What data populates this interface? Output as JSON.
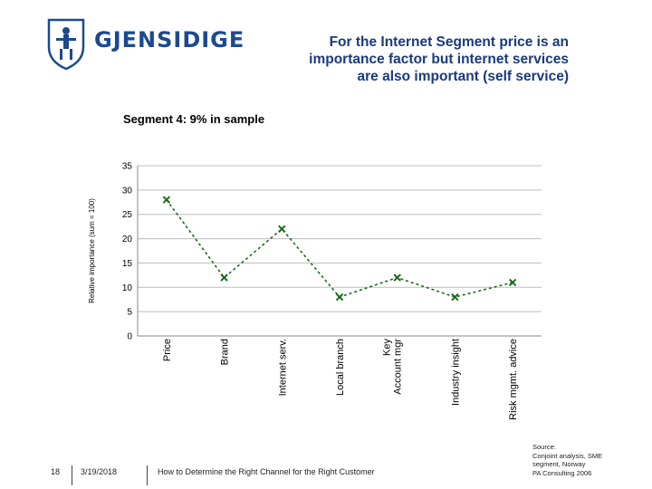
{
  "header": {
    "brand": "GJENSIDIGE",
    "title_lines": [
      "For the Internet Segment price is an",
      "importance factor but internet services",
      "are also important (self service)"
    ]
  },
  "chart_data": {
    "type": "line",
    "title": "Segment 4: 9% in sample",
    "xlabel": "",
    "ylabel": "Relative importance (sum = 100)",
    "categories": [
      "Price",
      "Brand",
      "Internet serv.",
      "Local branch",
      "Key Account mgr",
      "Industry insight",
      "Risk mgmt. advice"
    ],
    "category_lines": [
      [
        "Price"
      ],
      [
        "Brand"
      ],
      [
        "Internet serv."
      ],
      [
        "Local branch"
      ],
      [
        "Key",
        "Account mgr"
      ],
      [
        "Industry insight"
      ],
      [
        "Risk mgmt. advice"
      ]
    ],
    "series": [
      {
        "name": "Segment 4",
        "values": [
          28,
          12,
          22,
          8,
          12,
          8,
          11
        ],
        "color": "#1a6b1a"
      }
    ],
    "ylim": [
      0,
      35
    ],
    "yticks": [
      0,
      5,
      10,
      15,
      20,
      25,
      30,
      35
    ],
    "grid": true
  },
  "footer": {
    "page_number": "18",
    "date": "3/19/2018",
    "talk_title": "How to Determine the Right Channel for the Right Customer",
    "source_lines": [
      "Source:",
      "Conjoint analysis, SME",
      "segment, Norway",
      "PA Consulting 2006"
    ]
  }
}
